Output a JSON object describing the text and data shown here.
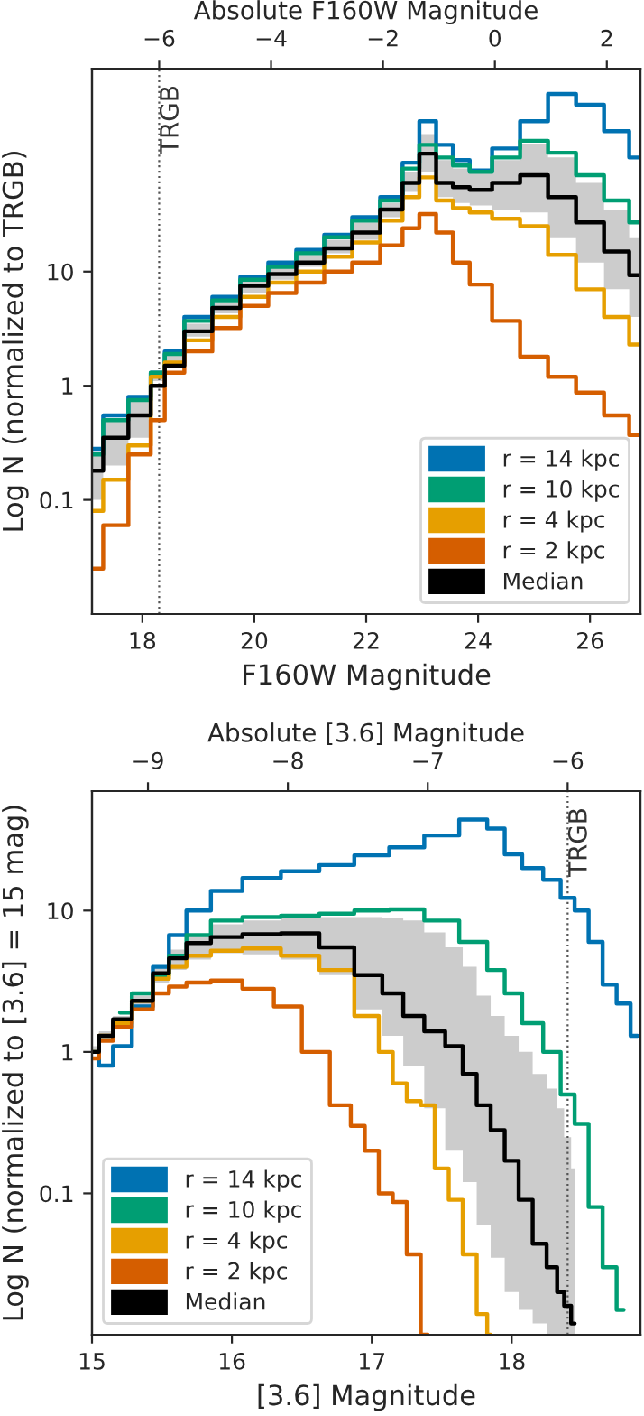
{
  "chart_data": [
    {
      "type": "step",
      "xlabel": "F160W Magnitude",
      "ylabel": "Log N (normalized to TRGB)",
      "x2label": "Absolute F160W Magnitude",
      "xlim": [
        17.1,
        26.9
      ],
      "xticks": [
        18,
        20,
        22,
        24,
        26
      ],
      "x2lim": [
        -7.2,
        2.6
      ],
      "x2ticks": [
        {
          "value": -6,
          "label": "−6"
        },
        {
          "value": -4,
          "label": "−4"
        },
        {
          "value": -2,
          "label": "−2"
        },
        0,
        2
      ],
      "ylim": [
        0.01,
        600
      ],
      "log": "y",
      "yticks": [
        0.1,
        1,
        10
      ],
      "grid": false,
      "legend": "bottom right",
      "ref_lines": [
        {
          "axis": "x",
          "value": 18.3,
          "label": "TRGB",
          "color": "#555555",
          "line_style": "dotted"
        }
      ],
      "series": [
        {
          "name": "r = 14 kpc",
          "color": "#0072b2",
          "x": [
            17.1,
            17.5,
            18.0,
            18.3,
            18.5,
            19.0,
            19.5,
            20.0,
            20.5,
            21.0,
            21.5,
            22.0,
            22.5,
            22.8,
            23.1,
            23.4,
            23.7,
            24.0,
            24.5,
            25.0,
            25.5,
            26.0,
            26.5,
            26.9
          ],
          "values": [
            0.28,
            0.55,
            0.8,
            1.3,
            2.0,
            4.0,
            6.0,
            9,
            12,
            15.5,
            21,
            30,
            45,
            90,
            208,
            129,
            95,
            77,
            120,
            208,
            360,
            290,
            170,
            100
          ]
        },
        {
          "name": "r = 10 kpc",
          "color": "#009e73",
          "x": [
            17.1,
            17.5,
            18.0,
            18.3,
            18.5,
            19.0,
            19.5,
            20.0,
            20.5,
            21.0,
            21.5,
            22.0,
            22.5,
            22.8,
            23.1,
            23.4,
            23.7,
            24.0,
            24.5,
            25.0,
            25.5,
            26.0,
            26.5,
            26.9
          ],
          "values": [
            0.25,
            0.5,
            0.75,
            1.3,
            1.9,
            3.7,
            5.6,
            8.5,
            11,
            14.5,
            20,
            28,
            42,
            80,
            129,
            100,
            85,
            75,
            100,
            140,
            110,
            70,
            42,
            27
          ]
        },
        {
          "name": "r = 4 kpc",
          "color": "#e69f00",
          "x": [
            17.1,
            17.5,
            18.0,
            18.3,
            18.5,
            19.0,
            19.5,
            20.0,
            20.5,
            21.0,
            21.5,
            22.0,
            22.5,
            22.8,
            23.1,
            23.4,
            23.7,
            24.0,
            24.5,
            25.0,
            25.5,
            26.0,
            26.5,
            26.9
          ],
          "values": [
            0.08,
            0.15,
            0.3,
            1.2,
            1.6,
            2.5,
            4.0,
            6,
            8,
            10,
            13.5,
            18,
            28,
            45,
            67,
            42,
            36,
            33,
            29,
            25,
            14,
            7,
            4,
            2.3
          ]
        },
        {
          "name": "r = 2 kpc",
          "color": "#d55e00",
          "x": [
            17.1,
            17.5,
            18.0,
            18.3,
            18.5,
            19.0,
            19.5,
            20.0,
            20.5,
            21.0,
            21.5,
            22.0,
            22.5,
            22.8,
            23.1,
            23.4,
            23.7,
            24.0,
            24.5,
            25.0,
            25.5,
            26.0,
            26.5,
            26.9
          ],
          "values": [
            0.025,
            0.06,
            0.25,
            0.5,
            1.3,
            2.0,
            3.2,
            5,
            6.5,
            8,
            10,
            12,
            17,
            24,
            32,
            22,
            12,
            7.7,
            3.7,
            1.8,
            1.2,
            0.87,
            0.55,
            0.37
          ]
        },
        {
          "name": "Median",
          "color": "#000000",
          "x": [
            17.1,
            17.5,
            18.0,
            18.3,
            18.5,
            19.0,
            19.5,
            20.0,
            20.5,
            21.0,
            21.5,
            22.0,
            22.5,
            22.8,
            23.1,
            23.4,
            23.7,
            24.0,
            24.5,
            25.0,
            25.5,
            26.0,
            26.5,
            26.9
          ],
          "values": [
            0.18,
            0.35,
            0.55,
            1.0,
            1.5,
            3.0,
            4.8,
            7.5,
            9.5,
            12,
            16,
            22,
            35,
            60,
            108,
            60,
            55,
            52,
            60,
            70,
            45,
            27,
            15,
            9.3
          ],
          "lower": [
            0.1,
            0.2,
            0.35,
            1.1,
            1.6,
            2.7,
            4.3,
            6.5,
            8.5,
            11,
            14.5,
            19,
            30,
            50,
            75,
            45,
            40,
            38,
            35,
            33,
            20,
            12,
            7,
            4
          ],
          "upper": [
            0.25,
            0.5,
            0.75,
            1.3,
            1.9,
            3.5,
            5.4,
            8.5,
            11,
            14,
            19,
            27,
            40,
            75,
            160,
            95,
            80,
            75,
            95,
            130,
            100,
            60,
            35,
            20
          ]
        }
      ]
    },
    {
      "type": "step",
      "xlabel": "[3.6] Magnitude",
      "ylabel": "Log N (normalized to [3.6] = 15 mag)",
      "x2label": "Absolute [3.6] Magnitude",
      "xlim": [
        15,
        18.92
      ],
      "xticks": [
        15,
        16,
        17,
        18
      ],
      "x2lim": [
        -9.4,
        -5.48
      ],
      "x2ticks": [
        {
          "value": -9,
          "label": "−9"
        },
        {
          "value": -8,
          "label": "−8"
        },
        {
          "value": -7,
          "label": "−7"
        },
        {
          "value": -6,
          "label": "−6"
        }
      ],
      "ylim": [
        0.01,
        70
      ],
      "log": "y",
      "yticks": [
        0.1,
        1,
        10
      ],
      "grid": false,
      "legend": "bottom left",
      "ref_lines": [
        {
          "axis": "x",
          "value": 18.4,
          "label": "TRGB",
          "color": "#555555",
          "line_style": "dotted"
        }
      ],
      "series": [
        {
          "name": "r = 14 kpc",
          "color": "#0072b2",
          "x": [
            15.0,
            15.1,
            15.2,
            15.37,
            15.5,
            15.6,
            15.75,
            15.95,
            16.2,
            16.5,
            16.75,
            17.0,
            17.25,
            17.5,
            17.75,
            17.9,
            18.0,
            18.15,
            18.3,
            18.4,
            18.5,
            18.6,
            18.7,
            18.8,
            18.9
          ],
          "values": [
            1.0,
            0.8,
            1.1,
            2.1,
            4.0,
            6.7,
            10,
            13.8,
            17,
            19,
            21,
            24.6,
            28,
            34,
            44,
            38,
            25,
            20,
            16.5,
            12.3,
            10,
            6,
            3.0,
            2.2,
            1.3
          ]
        },
        {
          "name": "r = 10 kpc",
          "color": "#009e73",
          "x": [
            15.2,
            15.37,
            15.5,
            15.6,
            15.75,
            15.95,
            16.2,
            16.5,
            16.75,
            17.0,
            17.25,
            17.5,
            17.75,
            17.9,
            18.0,
            18.15,
            18.3,
            18.4,
            18.5,
            18.6,
            18.7,
            18.8
          ],
          "values": [
            1.9,
            2.6,
            3.5,
            4.8,
            6.7,
            8.5,
            9.0,
            9.2,
            9.5,
            10,
            10.2,
            8.5,
            6.0,
            3.8,
            2.6,
            1.6,
            1.0,
            0.5,
            0.31,
            0.08,
            0.03,
            0.015
          ]
        },
        {
          "name": "r = 4 kpc",
          "color": "#e69f00",
          "x": [
            15.0,
            15.1,
            15.2,
            15.37,
            15.5,
            15.6,
            15.75,
            15.95,
            16.2,
            16.5,
            16.75,
            17.0,
            17.1,
            17.2,
            17.3,
            17.4,
            17.5,
            17.6,
            17.7,
            17.8,
            17.85
          ],
          "values": [
            1.0,
            1.3,
            1.6,
            2.3,
            3.3,
            4.0,
            4.8,
            5.2,
            5.4,
            4.8,
            3.8,
            1.8,
            1.0,
            0.6,
            0.45,
            0.42,
            0.15,
            0.09,
            0.037,
            0.014,
            0.01
          ]
        },
        {
          "name": "r = 2 kpc",
          "color": "#d55e00",
          "x": [
            15.0,
            15.1,
            15.2,
            15.37,
            15.5,
            15.6,
            15.75,
            15.95,
            16.2,
            16.4,
            16.6,
            16.8,
            16.9,
            17.0,
            17.1,
            17.2,
            17.3,
            17.4
          ],
          "values": [
            0.9,
            1.2,
            1.5,
            2.0,
            2.6,
            2.9,
            3.1,
            3.2,
            2.8,
            2.1,
            1.0,
            0.42,
            0.3,
            0.2,
            0.1,
            0.087,
            0.037,
            0.01
          ]
        },
        {
          "name": "Median",
          "color": "#000000",
          "x": [
            15.0,
            15.1,
            15.2,
            15.37,
            15.5,
            15.6,
            15.75,
            15.95,
            16.2,
            16.5,
            16.75,
            17.0,
            17.15,
            17.3,
            17.45,
            17.6,
            17.7,
            17.8,
            17.9,
            18.0,
            18.1,
            18.2,
            18.3,
            18.35,
            18.4,
            18.45
          ],
          "values": [
            1.0,
            1.3,
            1.7,
            2.3,
            3.6,
            4.6,
            5.9,
            6.5,
            6.8,
            6.9,
            5.5,
            3.5,
            2.6,
            1.8,
            1.4,
            1.1,
            0.7,
            0.42,
            0.28,
            0.17,
            0.09,
            0.044,
            0.03,
            0.02,
            0.016,
            0.012
          ],
          "lower": [
            1.0,
            1.2,
            1.5,
            2.1,
            3.1,
            3.8,
            4.5,
            5.0,
            4.9,
            4.5,
            3.5,
            2.0,
            1.3,
            0.8,
            0.4,
            0.2,
            0.12,
            0.06,
            0.035,
            0.02,
            0.015,
            0.012,
            0.01,
            0.01,
            0.01,
            0.01
          ],
          "upper": [
            1.1,
            1.4,
            1.8,
            2.5,
            4.0,
            5.3,
            6.8,
            8.0,
            8.5,
            8.8,
            9.0,
            9.0,
            8.8,
            8.5,
            7.0,
            5.5,
            4.0,
            2.5,
            1.8,
            1.3,
            1.0,
            0.7,
            0.55,
            0.4,
            0.25,
            0.15
          ]
        }
      ]
    }
  ]
}
